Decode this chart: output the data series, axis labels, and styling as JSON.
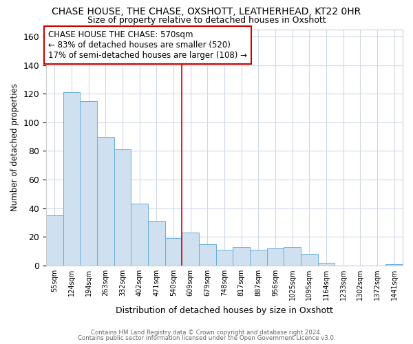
{
  "title": "CHASE HOUSE, THE CHASE, OXSHOTT, LEATHERHEAD, KT22 0HR",
  "subtitle": "Size of property relative to detached houses in Oxshott",
  "xlabel": "Distribution of detached houses by size in Oxshott",
  "ylabel": "Number of detached properties",
  "bar_labels": [
    "55sqm",
    "124sqm",
    "194sqm",
    "263sqm",
    "332sqm",
    "402sqm",
    "471sqm",
    "540sqm",
    "609sqm",
    "679sqm",
    "748sqm",
    "817sqm",
    "887sqm",
    "956sqm",
    "1025sqm",
    "1095sqm",
    "1164sqm",
    "1233sqm",
    "1302sqm",
    "1372sqm",
    "1441sqm"
  ],
  "bar_heights": [
    35,
    121,
    115,
    90,
    81,
    43,
    31,
    19,
    23,
    15,
    11,
    13,
    11,
    12,
    13,
    8,
    2,
    0,
    0,
    0,
    1
  ],
  "bar_color": "#cfe0f1",
  "bar_edge_color": "#6aaed6",
  "ylim": [
    0,
    165
  ],
  "yticks": [
    0,
    20,
    40,
    60,
    80,
    100,
    120,
    140,
    160
  ],
  "annotation_title": "CHASE HOUSE THE CHASE: 570sqm",
  "annotation_line1": "← 83% of detached houses are smaller (520)",
  "annotation_line2": "17% of semi-detached houses are larger (108) →",
  "vline_x_index": 7.5,
  "footer_line1": "Contains HM Land Registry data © Crown copyright and database right 2024.",
  "footer_line2": "Contains public sector information licensed under the Open Government Licence v3.0."
}
